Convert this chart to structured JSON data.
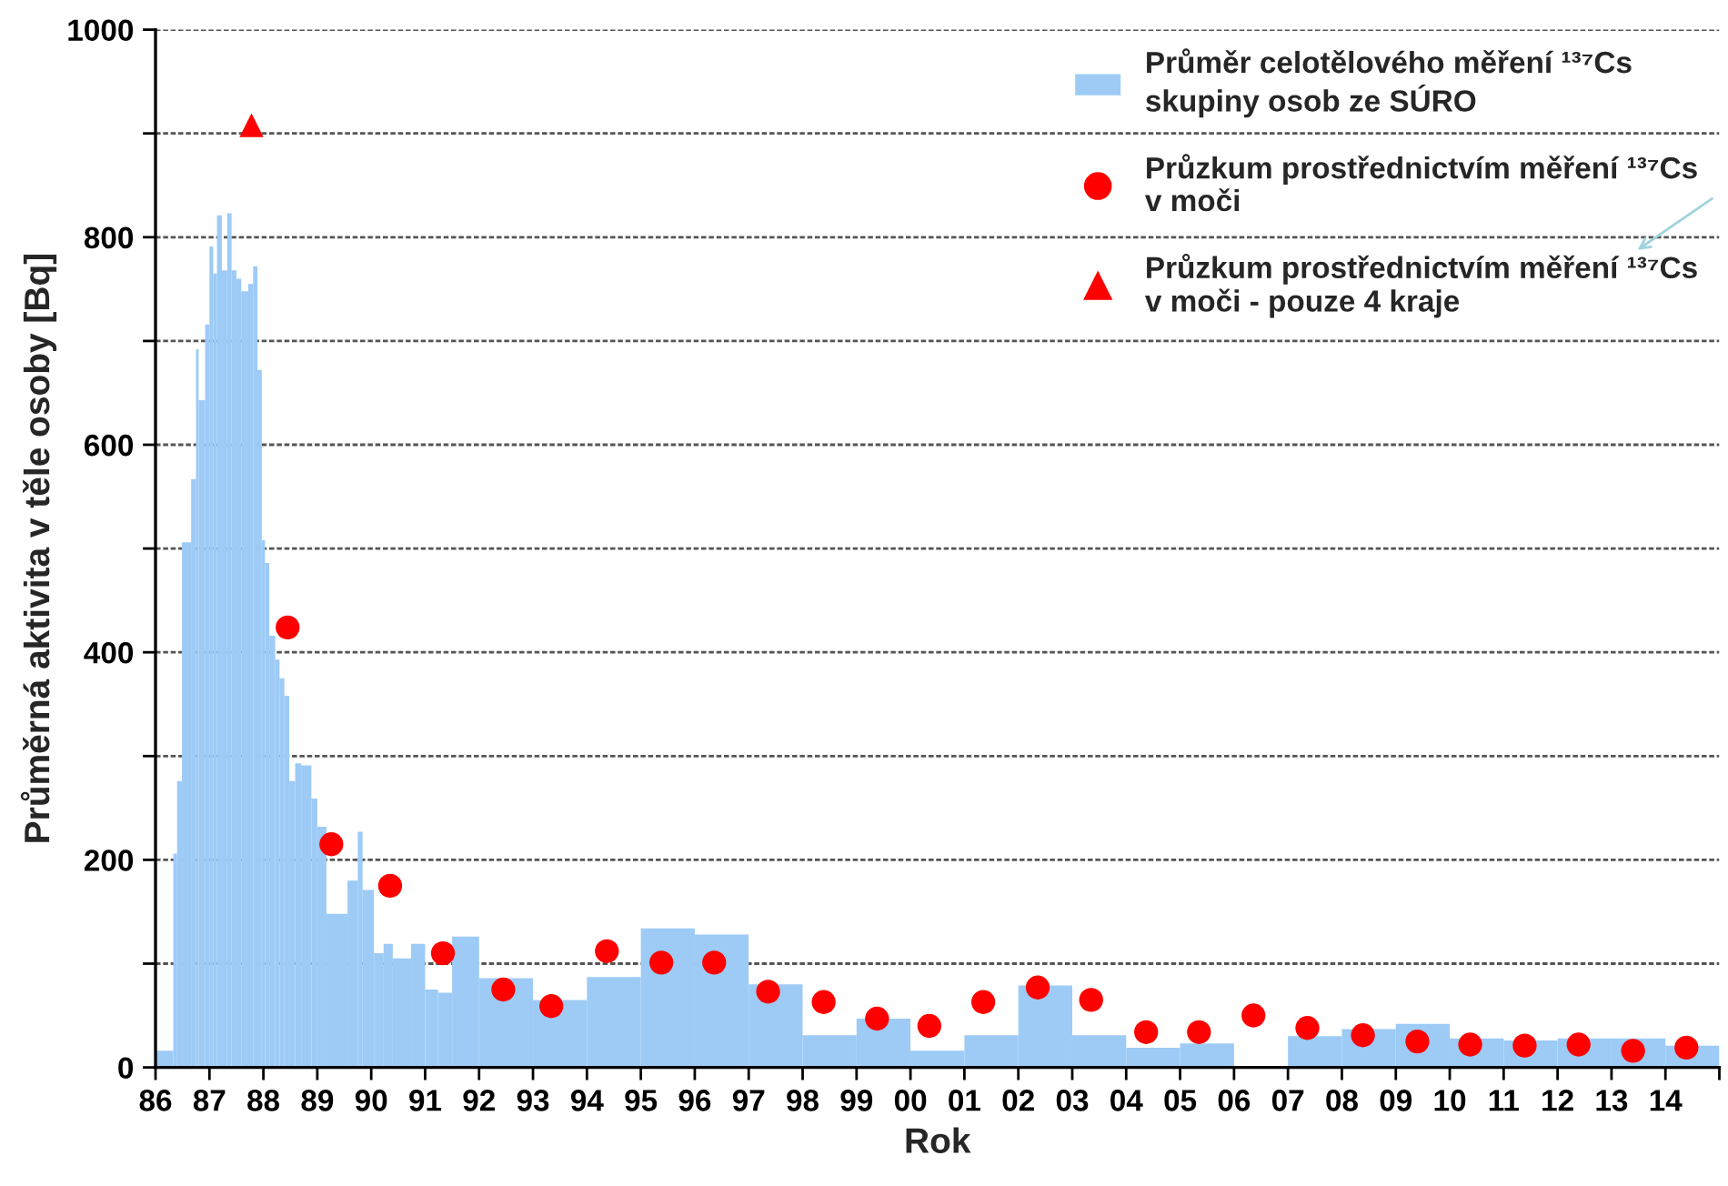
{
  "chart_data": {
    "type": "histogram",
    "xlabel": "Rok",
    "ylabel": "Průměrná aktivita v těle osoby [Bq]",
    "xlim": [
      1986,
      2015
    ],
    "ylim": [
      0,
      1000
    ],
    "xticks": [
      {
        "value": 1986,
        "label": "86"
      },
      {
        "value": 1987,
        "label": "87"
      },
      {
        "value": 1988,
        "label": "88"
      },
      {
        "value": 1989,
        "label": "89"
      },
      {
        "value": 1990,
        "label": "90"
      },
      {
        "value": 1991,
        "label": "91"
      },
      {
        "value": 1992,
        "label": "92"
      },
      {
        "value": 1993,
        "label": "93"
      },
      {
        "value": 1994,
        "label": "94"
      },
      {
        "value": 1995,
        "label": "95"
      },
      {
        "value": 1996,
        "label": "96"
      },
      {
        "value": 1997,
        "label": "97"
      },
      {
        "value": 1998,
        "label": "98"
      },
      {
        "value": 1999,
        "label": "99"
      },
      {
        "value": 2000,
        "label": "00"
      },
      {
        "value": 2001,
        "label": "01"
      },
      {
        "value": 2002,
        "label": "02"
      },
      {
        "value": 2003,
        "label": "03"
      },
      {
        "value": 2004,
        "label": "04"
      },
      {
        "value": 2005,
        "label": "05"
      },
      {
        "value": 2006,
        "label": "06"
      },
      {
        "value": 2007,
        "label": "07"
      },
      {
        "value": 2008,
        "label": "08"
      },
      {
        "value": 2009,
        "label": "09"
      },
      {
        "value": 2010,
        "label": "10"
      },
      {
        "value": 2011,
        "label": "11"
      },
      {
        "value": 2012,
        "label": "12"
      },
      {
        "value": 2013,
        "label": "13"
      },
      {
        "value": 2014,
        "label": "14"
      },
      {
        "value": 2015,
        "label": null
      }
    ],
    "yticks": [
      0,
      {
        "value": 100,
        "label": null
      },
      200,
      {
        "value": 300,
        "label": null
      },
      400,
      {
        "value": 500,
        "label": null
      },
      600,
      {
        "value": 700,
        "label": null
      },
      800,
      {
        "value": 900,
        "label": null
      },
      1000
    ],
    "grid": "y",
    "legend": "top right",
    "series": [
      {
        "name": "Průměr celotělového měření ¹³⁷Cs\nskupiny osob ze SÚRO",
        "color": "#9dcbf6",
        "bins": [
          1986.0,
          1986.33,
          1986.4,
          1986.49,
          1986.66,
          1986.75,
          1986.8,
          1986.92,
          1987.0,
          1987.07,
          1987.14,
          1987.23,
          1987.33,
          1987.41,
          1987.5,
          1987.59,
          1987.72,
          1987.81,
          1987.89,
          1987.97,
          1988.03,
          1988.11,
          1988.22,
          1988.3,
          1988.39,
          1988.48,
          1988.59,
          1988.7,
          1988.89,
          1989.0,
          1989.17,
          1989.56,
          1989.75,
          1989.84,
          1990.05,
          1990.23,
          1990.4,
          1990.74,
          1991.0,
          1991.24,
          1991.5,
          1992,
          1993,
          1994,
          1995,
          1996,
          1997,
          1998,
          1999,
          2000,
          2001,
          2002,
          2003,
          2004,
          2005,
          2006,
          2007,
          2008,
          2009,
          2010,
          2011,
          2012,
          2013,
          2014,
          2015
        ],
        "values": [
          16,
          206,
          276,
          506,
          567,
          692,
          643,
          716,
          791,
          765,
          821,
          768,
          823,
          768,
          760,
          748,
          755,
          772,
          672,
          508,
          486,
          416,
          393,
          375,
          358,
          276,
          293,
          291,
          259,
          232,
          148,
          180,
          227,
          171,
          110,
          119,
          105,
          119,
          75,
          72,
          126,
          86,
          65,
          87,
          134,
          128,
          80,
          31,
          47,
          16,
          31,
          79,
          31,
          19,
          23,
          0,
          30,
          37,
          42,
          28,
          26,
          28,
          28,
          21
        ]
      },
      {
        "type": "scatter",
        "name": "Průzkum prostřednictvím měření ¹³⁷Cs\nv moči",
        "color": "#ff0000",
        "marker": "circle",
        "x": [
          1988.45,
          1989.26,
          1990.35,
          1991.33,
          1992.45,
          1993.34,
          1994.37,
          1995.38,
          1996.36,
          1997.36,
          1998.39,
          1999.38,
          2000.35,
          2001.35,
          2002.36,
          2003.35,
          2004.37,
          2005.35,
          2006.36,
          2007.36,
          2008.39,
          2009.4,
          2010.38,
          2011.39,
          2012.39,
          2013.4,
          2014.39
        ],
        "values": [
          424,
          215,
          175,
          110,
          75,
          59,
          112,
          101,
          101,
          73,
          63,
          47,
          40,
          63,
          77,
          65,
          34,
          34,
          50,
          38,
          31,
          25,
          22,
          21,
          22,
          16,
          19
        ]
      },
      {
        "type": "scatter",
        "name": "Průzkum prostřednictvím měření ¹³⁷Cs\nv moči - pouze 4 kraje",
        "color": "#ff0000",
        "marker": "triangle",
        "x": [
          1987.78
        ],
        "values": [
          908
        ]
      }
    ]
  }
}
